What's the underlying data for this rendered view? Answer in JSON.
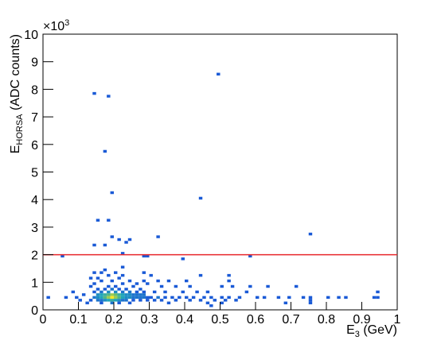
{
  "chart_data": {
    "type": "heatmap",
    "xlabel": [
      "E",
      "3",
      " (GeV)"
    ],
    "ylabel": [
      "E",
      "HORSA",
      " (ADC counts)"
    ],
    "y_multiplier": [
      "×10",
      "3"
    ],
    "xlim": [
      0,
      1
    ],
    "xticks": [
      0,
      0.1,
      0.2,
      0.3,
      0.4,
      0.5,
      0.6,
      0.7,
      0.8,
      0.9,
      1
    ],
    "ylim": [
      0,
      10
    ],
    "yticks": [
      0,
      1,
      2,
      3,
      4,
      5,
      6,
      7,
      8,
      9,
      10
    ],
    "colorscale": [
      "#1a5ad6",
      "#1fa5b8",
      "#6cbf68",
      "#f8e626"
    ],
    "hlines": [
      {
        "value": 2,
        "color": "#e8262b"
      }
    ],
    "x": [
      0.155,
      0.165,
      0.175,
      0.185,
      0.195,
      0.205,
      0.215,
      0.225,
      0.235,
      0.245,
      0.255,
      0.265,
      0.275,
      0.285,
      0.145,
      0.155,
      0.165,
      0.175,
      0.185,
      0.195,
      0.205,
      0.215,
      0.225,
      0.235,
      0.245,
      0.255,
      0.265,
      0.275,
      0.285,
      0.295,
      0.135,
      0.155,
      0.165,
      0.175,
      0.185,
      0.195,
      0.205,
      0.215,
      0.225,
      0.235,
      0.255,
      0.275,
      0.295,
      0.145,
      0.165,
      0.185,
      0.205,
      0.225,
      0.245,
      0.265,
      0.285,
      0.125,
      0.165,
      0.195,
      0.215,
      0.245,
      0.155,
      0.175,
      0.195,
      0.215,
      0.235,
      0.275,
      0.135,
      0.185,
      0.205,
      0.255,
      0.145,
      0.225,
      0.265,
      0.295,
      0.165,
      0.195,
      0.245,
      0.285,
      0.135,
      0.215,
      0.155,
      0.185,
      0.225,
      0.145,
      0.165,
      0.205,
      0.285,
      0.175,
      0.225,
      0.305,
      0.325,
      0.345,
      0.365,
      0.385,
      0.405,
      0.425,
      0.455,
      0.475,
      0.505,
      0.525,
      0.555,
      0.605,
      0.625,
      0.665,
      0.695,
      0.735,
      0.755,
      0.805,
      0.835,
      0.855,
      0.935,
      0.945,
      0.315,
      0.335,
      0.375,
      0.415,
      0.445,
      0.485,
      0.515,
      0.545,
      0.755,
      0.315,
      0.345,
      0.395,
      0.435,
      0.465,
      0.575,
      0.945,
      0.335,
      0.375,
      0.415,
      0.505,
      0.535,
      0.585,
      0.635,
      0.715,
      0.325,
      0.355,
      0.405,
      0.525,
      0.305,
      0.445,
      0.525,
      0.355,
      0.465,
      0.505,
      0.685,
      0.755,
      0.475,
      0.015,
      0.065,
      0.085,
      0.095,
      0.105,
      0.115,
      0.145,
      0.185,
      0.495,
      0.175,
      0.195,
      0.445,
      0.155,
      0.185,
      0.755,
      0.325,
      0.195,
      0.145,
      0.175,
      0.215,
      0.245,
      0.235,
      0.225,
      0.055,
      0.285,
      0.395,
      0.585,
      0.295
    ],
    "y": [
      0.55,
      0.55,
      0.55,
      0.55,
      0.55,
      0.55,
      0.55,
      0.55,
      0.55,
      0.55,
      0.55,
      0.55,
      0.55,
      0.55,
      0.45,
      0.45,
      0.45,
      0.45,
      0.45,
      0.45,
      0.45,
      0.45,
      0.45,
      0.45,
      0.45,
      0.45,
      0.45,
      0.45,
      0.45,
      0.45,
      0.35,
      0.35,
      0.35,
      0.35,
      0.35,
      0.35,
      0.35,
      0.35,
      0.35,
      0.35,
      0.35,
      0.35,
      0.35,
      0.65,
      0.65,
      0.65,
      0.65,
      0.65,
      0.65,
      0.65,
      0.65,
      0.25,
      0.25,
      0.25,
      0.25,
      0.25,
      0.75,
      0.75,
      0.75,
      0.75,
      0.75,
      0.75,
      0.85,
      0.85,
      0.85,
      0.85,
      0.95,
      0.95,
      0.95,
      0.95,
      1.05,
      1.05,
      1.05,
      1.05,
      1.15,
      1.15,
      1.15,
      1.25,
      1.25,
      1.35,
      1.35,
      1.35,
      1.35,
      1.45,
      1.55,
      0.45,
      0.45,
      0.45,
      0.45,
      0.45,
      0.45,
      0.45,
      0.45,
      0.45,
      0.45,
      0.45,
      0.45,
      0.45,
      0.45,
      0.45,
      0.45,
      0.45,
      0.45,
      0.45,
      0.45,
      0.45,
      0.45,
      0.45,
      0.35,
      0.35,
      0.35,
      0.35,
      0.35,
      0.35,
      0.35,
      0.35,
      0.35,
      0.65,
      0.65,
      0.65,
      0.65,
      0.65,
      0.65,
      0.65,
      0.85,
      0.85,
      0.85,
      0.85,
      0.85,
      0.85,
      0.85,
      0.85,
      1.05,
      1.05,
      1.05,
      1.05,
      1.25,
      1.25,
      1.25,
      0.25,
      0.25,
      0.25,
      0.25,
      0.25,
      0.15,
      0.45,
      0.45,
      0.65,
      0.45,
      0.35,
      0.55,
      7.85,
      7.75,
      8.55,
      5.75,
      4.25,
      4.05,
      3.25,
      3.25,
      2.75,
      2.65,
      2.65,
      2.35,
      2.35,
      2.55,
      2.55,
      2.45,
      2.05,
      1.95,
      1.95,
      1.85,
      1.95,
      1.95
    ],
    "values": [
      3,
      4,
      5,
      6,
      8,
      7,
      5,
      4,
      3,
      3,
      2,
      2,
      2,
      2,
      2,
      3,
      4,
      6,
      8,
      10,
      8,
      6,
      4,
      3,
      3,
      2,
      2,
      2,
      2,
      1,
      1,
      2,
      2,
      3,
      4,
      5,
      4,
      3,
      2,
      2,
      1,
      1,
      1,
      1,
      2,
      3,
      3,
      2,
      2,
      1,
      1,
      1,
      1,
      2,
      1,
      1,
      1,
      1,
      2,
      1,
      1,
      1,
      1,
      1,
      1,
      1,
      1,
      1,
      1,
      1,
      1,
      1,
      1,
      1,
      1,
      1,
      1,
      1,
      1,
      1,
      1,
      1,
      1,
      1,
      1,
      1,
      2,
      1,
      1,
      1,
      1,
      1,
      1,
      1,
      1,
      1,
      1,
      1,
      1,
      1,
      1,
      1,
      1,
      1,
      1,
      1,
      1,
      1,
      1,
      1,
      1,
      1,
      1,
      1,
      1,
      1,
      1,
      1,
      1,
      1,
      1,
      1,
      1,
      1,
      1,
      1,
      1,
      1,
      1,
      1,
      1,
      1,
      1,
      1,
      1,
      1,
      1,
      1,
      1,
      1,
      1,
      1,
      1,
      1,
      1,
      1,
      1,
      1,
      1,
      1,
      1,
      1,
      1,
      1,
      1,
      1,
      1,
      1,
      1,
      1,
      1,
      1,
      1,
      1,
      1,
      1,
      1,
      1,
      1,
      1,
      1,
      1,
      1
    ]
  }
}
